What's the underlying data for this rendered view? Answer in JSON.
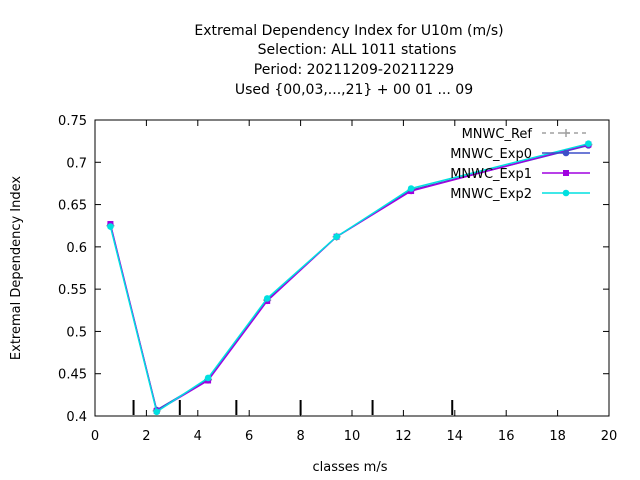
{
  "chart_data": {
    "type": "line",
    "title": [
      "Extremal Dependency Index  for U10m (m/s)",
      "Selection: ALL    1011 stations",
      "Period: 20211209-20211229",
      "Used {00,03,...,21} + 00 01 ... 09"
    ],
    "xlabel": "classes m/s",
    "ylabel": "Extremal Dependency Index",
    "xlim": [
      0,
      20
    ],
    "ylim": [
      0.4,
      0.75
    ],
    "xticks": [
      0,
      2,
      4,
      6,
      8,
      10,
      12,
      14,
      16,
      18,
      20
    ],
    "yticks": [
      0.4,
      0.45,
      0.5,
      0.55,
      0.6,
      0.65,
      0.7,
      0.75
    ],
    "x": [
      0.6,
      2.4,
      4.4,
      6.7,
      9.4,
      12.3,
      19.2
    ],
    "class_boundaries": [
      1.5,
      3.3,
      5.5,
      8.0,
      10.8,
      13.9
    ],
    "grid": false,
    "legend_position": "top-right",
    "series": [
      {
        "name": "MNWC_Ref",
        "color": "#a0a0a0",
        "dash": "4,4",
        "marker": "plus",
        "values": [
          0.625,
          0.406,
          0.443,
          0.537,
          0.612,
          0.667,
          0.721
        ]
      },
      {
        "name": "MNWC_Exp0",
        "color": "#3d4fc8",
        "dash": "",
        "marker": "circle",
        "values": [
          0.626,
          0.407,
          0.443,
          0.537,
          0.612,
          0.667,
          0.72
        ]
      },
      {
        "name": "MNWC_Exp1",
        "color": "#a000e0",
        "dash": "",
        "marker": "square",
        "values": [
          0.627,
          0.406,
          0.442,
          0.536,
          0.612,
          0.666,
          0.721
        ]
      },
      {
        "name": "MNWC_Exp2",
        "color": "#00e0e0",
        "dash": "",
        "marker": "circle",
        "values": [
          0.624,
          0.405,
          0.445,
          0.539,
          0.612,
          0.669,
          0.722
        ]
      }
    ]
  }
}
